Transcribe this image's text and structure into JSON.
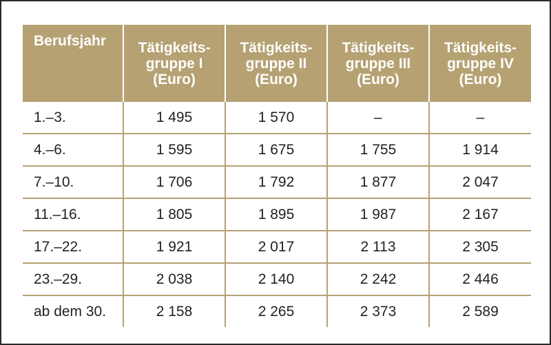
{
  "table": {
    "header": {
      "year_col": "Berufsjahr",
      "groups": [
        {
          "line1": "Tätigkeits-",
          "line2": "gruppe I",
          "line3": "(Euro)"
        },
        {
          "line1": "Tätigkeits-",
          "line2": "gruppe II",
          "line3": "(Euro)"
        },
        {
          "line1": "Tätigkeits-",
          "line2": "gruppe III",
          "line3": "(Euro)"
        },
        {
          "line1": "Tätigkeits-",
          "line2": "gruppe IV",
          "line3": "(Euro)"
        }
      ]
    },
    "rows": [
      {
        "year": "1.–3.",
        "values": [
          "1 495",
          "1 570",
          "–",
          "–"
        ]
      },
      {
        "year": "4.–6.",
        "values": [
          "1 595",
          "1 675",
          "1 755",
          "1 914"
        ]
      },
      {
        "year": "7.–10.",
        "values": [
          "1 706",
          "1 792",
          "1 877",
          "2 047"
        ]
      },
      {
        "year": "11.–16.",
        "values": [
          "1 805",
          "1 895",
          "1 987",
          "2 167"
        ]
      },
      {
        "year": "17.–22.",
        "values": [
          "1 921",
          "2 017",
          "2 113",
          "2 305"
        ]
      },
      {
        "year": "23.–29.",
        "values": [
          "2 038",
          "2 140",
          "2 242",
          "2 446"
        ]
      },
      {
        "year": "ab dem 30.",
        "values": [
          "2 158",
          "2 265",
          "2 373",
          "2 589"
        ]
      }
    ]
  },
  "colors": {
    "header_bg": "#b5a172",
    "header_text": "#ffffff",
    "grid_lines": "#b5a172",
    "body_text": "#222222",
    "frame_border": "#2a2a2a"
  }
}
